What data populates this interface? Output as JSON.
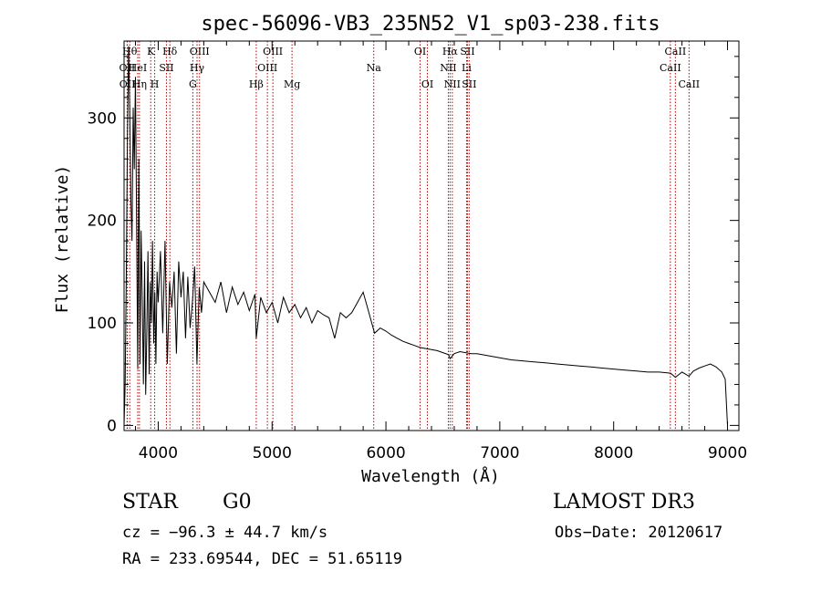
{
  "chart_data": {
    "type": "line",
    "title": "spec-56096-VB3_235N52_V1_sp03-238.fits",
    "xlabel": "Wavelength (Å)",
    "ylabel": "Flux (relative)",
    "xlim": [
      3700,
      9100
    ],
    "ylim": [
      -5,
      375
    ],
    "xticks": [
      4000,
      5000,
      6000,
      7000,
      8000,
      9000
    ],
    "yticks": [
      0,
      100,
      200,
      300
    ],
    "grid": false,
    "series": [
      {
        "name": "spectrum",
        "x": [
          3700,
          3710,
          3720,
          3730,
          3740,
          3750,
          3760,
          3770,
          3780,
          3790,
          3800,
          3810,
          3820,
          3830,
          3840,
          3850,
          3860,
          3870,
          3880,
          3890,
          3900,
          3910,
          3920,
          3930,
          3940,
          3950,
          3960,
          3970,
          3980,
          3990,
          4000,
          4020,
          4040,
          4060,
          4080,
          4100,
          4120,
          4140,
          4160,
          4180,
          4200,
          4220,
          4240,
          4260,
          4280,
          4300,
          4320,
          4340,
          4360,
          4380,
          4400,
          4450,
          4500,
          4550,
          4600,
          4650,
          4700,
          4750,
          4800,
          4850,
          4861,
          4900,
          4950,
          5000,
          5050,
          5100,
          5150,
          5200,
          5250,
          5300,
          5350,
          5400,
          5450,
          5500,
          5550,
          5600,
          5650,
          5700,
          5750,
          5800,
          5850,
          5900,
          5950,
          6000,
          6050,
          6100,
          6150,
          6200,
          6250,
          6300,
          6350,
          6400,
          6450,
          6500,
          6550,
          6563,
          6600,
          6650,
          6700,
          6750,
          6800,
          6900,
          7000,
          7100,
          7200,
          7300,
          7400,
          7500,
          7600,
          7700,
          7800,
          7900,
          8000,
          8100,
          8200,
          8300,
          8400,
          8500,
          8542,
          8600,
          8662,
          8700,
          8750,
          8800,
          8850,
          8900,
          8950,
          8980,
          9000
        ],
        "y": [
          0,
          40,
          150,
          280,
          370,
          310,
          220,
          180,
          310,
          250,
          340,
          200,
          55,
          260,
          60,
          190,
          120,
          40,
          160,
          30,
          95,
          170,
          50,
          140,
          100,
          180,
          80,
          130,
          60,
          150,
          120,
          170,
          90,
          180,
          60,
          140,
          115,
          150,
          70,
          160,
          125,
          150,
          85,
          145,
          95,
          120,
          155,
          60,
          135,
          110,
          140,
          130,
          120,
          140,
          110,
          135,
          118,
          130,
          112,
          128,
          85,
          125,
          110,
          120,
          100,
          125,
          110,
          118,
          105,
          115,
          100,
          112,
          108,
          105,
          85,
          110,
          105,
          110,
          120,
          130,
          110,
          90,
          95,
          92,
          88,
          85,
          82,
          80,
          78,
          76,
          75,
          74,
          73,
          71,
          69,
          65,
          70,
          72,
          71,
          70,
          70,
          68,
          66,
          64,
          63,
          62,
          61,
          60,
          59,
          58,
          57,
          56,
          55,
          54,
          53,
          52,
          52,
          51,
          47,
          52,
          48,
          53,
          56,
          58,
          60,
          57,
          52,
          45,
          0
        ]
      }
    ],
    "lines": [
      {
        "label": "OII",
        "wl": 3727,
        "row": 1
      },
      {
        "label": "OII",
        "wl": 3729,
        "row": 2
      },
      {
        "label": "Hθ",
        "wl": 3750,
        "row": 0
      },
      {
        "label": "HeI",
        "wl": 3820,
        "row": 1
      },
      {
        "label": "K",
        "wl": 3934,
        "row": 0
      },
      {
        "label": "Hη",
        "wl": 3835,
        "row": 2
      },
      {
        "label": "H",
        "wl": 3969,
        "row": 2
      },
      {
        "label": "SII",
        "wl": 4072,
        "row": 1
      },
      {
        "label": "Hδ",
        "wl": 4102,
        "row": 0
      },
      {
        "label": "OIII",
        "wl": 4363,
        "row": 0
      },
      {
        "label": "Hγ",
        "wl": 4341,
        "row": 1
      },
      {
        "label": "G",
        "wl": 4304,
        "row": 2
      },
      {
        "label": "Hβ",
        "wl": 4861,
        "row": 2
      },
      {
        "label": "OIII",
        "wl": 5007,
        "row": 0
      },
      {
        "label": "OIII",
        "wl": 4959,
        "row": 1
      },
      {
        "label": "Mg",
        "wl": 5175,
        "row": 2
      },
      {
        "label": "Na",
        "wl": 5893,
        "row": 1
      },
      {
        "label": "OI",
        "wl": 6300,
        "row": 0
      },
      {
        "label": "OI",
        "wl": 6364,
        "row": 2
      },
      {
        "label": "Hα",
        "wl": 6563,
        "row": 0
      },
      {
        "label": "SII",
        "wl": 6716,
        "row": 0
      },
      {
        "label": "NII",
        "wl": 6548,
        "row": 1
      },
      {
        "label": "Li",
        "wl": 6708,
        "row": 1
      },
      {
        "label": "NII",
        "wl": 6583,
        "row": 2
      },
      {
        "label": "SII",
        "wl": 6731,
        "row": 2
      },
      {
        "label": "CaII",
        "wl": 8542,
        "row": 0
      },
      {
        "label": "CaII",
        "wl": 8498,
        "row": 1
      },
      {
        "label": "CaII",
        "wl": 8662,
        "row": 2
      }
    ]
  },
  "info": {
    "class": "STAR",
    "subclass": "G0",
    "survey": "LAMOST DR3",
    "cz": "cz = −96.3 ± 44.7 km/s",
    "obs_date": "Obs−Date: 20120617",
    "coords": "RA = 233.69544, DEC =  51.65119"
  }
}
